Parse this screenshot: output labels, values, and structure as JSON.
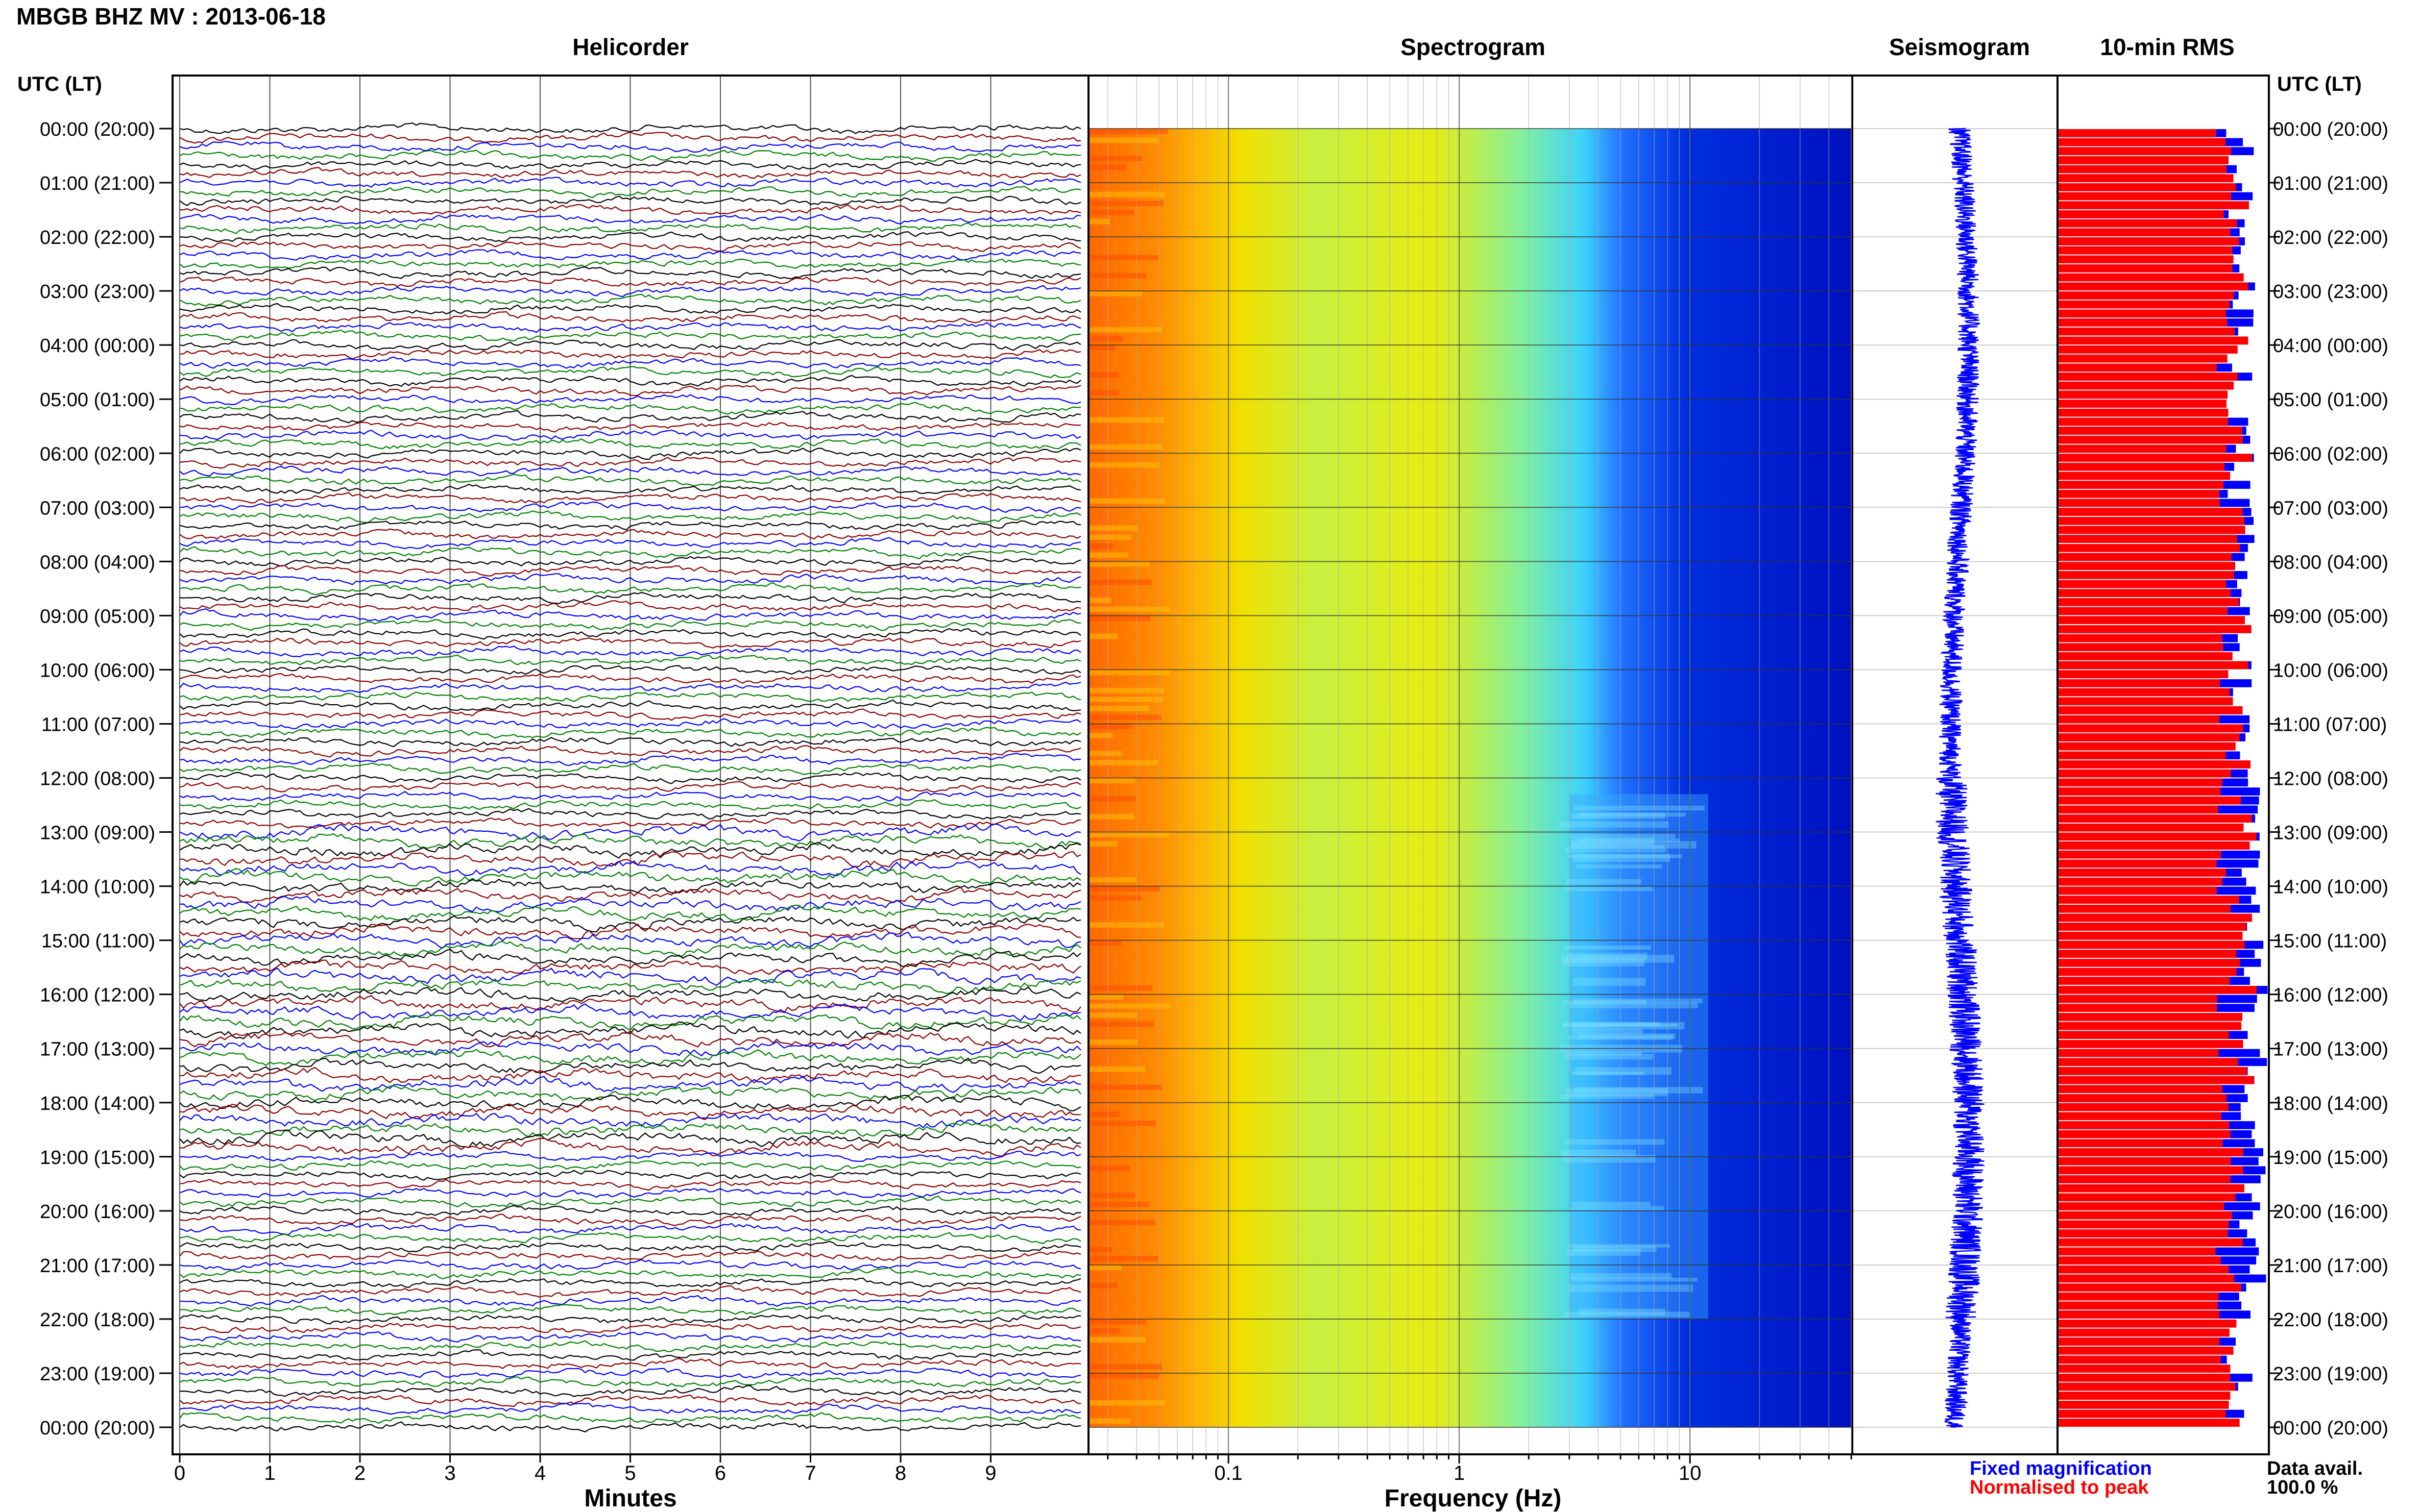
{
  "header": {
    "station_title": "MBGB BHZ MV : 2013-06-18",
    "utc_label_left": "UTC (LT)",
    "utc_label_right": "UTC (LT)"
  },
  "panels": {
    "helicorder_title": "Helicorder",
    "spectrogram_title": "Spectrogram",
    "seismogram_title": "Seismogram",
    "rms_title": "10-min RMS"
  },
  "axes": {
    "minutes_label": "Minutes",
    "frequency_label": "Frequency (Hz)"
  },
  "legend": {
    "fixed_label": "Fixed magnification",
    "fixed_color": "#0000ff",
    "normalised_label": "Normalised to peak",
    "normalised_color": "#ff0000",
    "data_avail_label": "Data avail.",
    "data_avail_value": "100.0 %"
  },
  "chart_data": [
    {
      "type": "line",
      "panel": "Helicorder",
      "title": "Helicorder",
      "xlabel": "Minutes",
      "x_ticks": [
        0,
        1,
        2,
        3,
        4,
        5,
        6,
        7,
        8,
        9
      ],
      "xlim": [
        0,
        10
      ],
      "row_interval_minutes": 10,
      "rows_per_day": 144,
      "trace_colors": [
        "#000000",
        "#8b0000",
        "#0000ff",
        "#008000"
      ],
      "noisy_hours_utc": [
        13,
        14,
        15,
        16,
        17,
        18
      ],
      "y_time_labels": [
        "00:00 (20:00)",
        "01:00 (21:00)",
        "02:00 (22:00)",
        "03:00 (23:00)",
        "04:00 (00:00)",
        "05:00 (01:00)",
        "06:00 (02:00)",
        "07:00 (03:00)",
        "08:00 (04:00)",
        "09:00 (05:00)",
        "10:00 (06:00)",
        "11:00 (07:00)",
        "12:00 (08:00)",
        "13:00 (09:00)",
        "14:00 (10:00)",
        "15:00 (11:00)",
        "16:00 (12:00)",
        "17:00 (13:00)",
        "18:00 (14:00)",
        "19:00 (15:00)",
        "20:00 (16:00)",
        "21:00 (17:00)",
        "22:00 (18:00)",
        "23:00 (19:00)",
        "00:00 (20:00)"
      ]
    },
    {
      "type": "heatmap",
      "panel": "Spectrogram",
      "title": "Spectrogram",
      "xlabel": "Frequency (Hz)",
      "x_scale": "log",
      "xlim": [
        0.025,
        50
      ],
      "x_tick_labels": [
        "0.1",
        "1",
        "10"
      ],
      "x_tick_values": [
        0.1,
        1,
        10
      ],
      "colormap": "jet",
      "hour_lines": true,
      "band_energy_by_frequency": [
        {
          "f_hz": 0.025,
          "level": 0.88
        },
        {
          "f_hz": 0.05,
          "level": 0.84
        },
        {
          "f_hz": 0.07,
          "level": 0.72
        },
        {
          "f_hz": 0.1,
          "level": 0.6
        },
        {
          "f_hz": 0.3,
          "level": 0.5
        },
        {
          "f_hz": 1.0,
          "level": 0.35
        },
        {
          "f_hz": 1.8,
          "level": 0.3
        },
        {
          "f_hz": 2.5,
          "level": 0.12
        },
        {
          "f_hz": 10,
          "level": 0.07
        },
        {
          "f_hz": 50,
          "level": 0.06
        }
      ],
      "elevated_band_hz": [
        3,
        12
      ],
      "elevated_hours_utc": [
        12.3,
        22
      ]
    },
    {
      "type": "line",
      "panel": "Seismogram",
      "title": "Seismogram",
      "series_color": "#0000ff",
      "hours_span": 24
    },
    {
      "type": "bar",
      "panel": "10-min RMS",
      "title": "10-min RMS",
      "orientation": "horizontal",
      "bins": 144,
      "series": [
        {
          "name": "Fixed magnification",
          "color": "#0000ff"
        },
        {
          "name": "Normalised to peak",
          "color": "#ff0000"
        }
      ],
      "xlim": [
        0,
        1
      ]
    }
  ]
}
